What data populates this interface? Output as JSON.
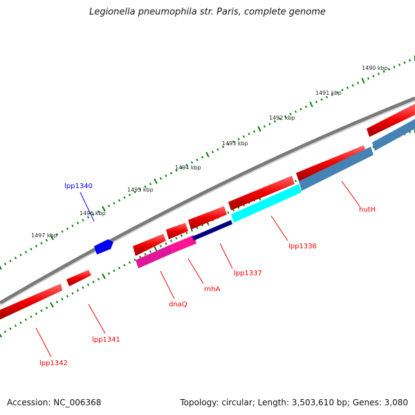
{
  "title": "Legionella pneumophila str. Paris, complete genome",
  "footer": {
    "accession": "Accession: NC_006368",
    "summary": "Topology: circular; Length: 3,503,610 bp; Genes: 3,080"
  },
  "ruler": {
    "ticks": [
      "1490 kbp",
      "1491 kbp",
      "1492 kbp",
      "1493 kbp",
      "1494 kbp",
      "1495 kbp",
      "1496 kbp",
      "1497 kbp"
    ]
  },
  "genes": [
    {
      "id": "lpp1340",
      "label": "lpp1340",
      "color": "#0000ee"
    },
    {
      "id": "lpp1336",
      "label": "lpp1336",
      "color": "#ee0000"
    },
    {
      "id": "hutH",
      "label": "hutH",
      "color": "#ee0000"
    },
    {
      "id": "lpp1337",
      "label": "lpp1337",
      "color": "#ee0000"
    },
    {
      "id": "rnhA",
      "label": "rnhA",
      "color": "#ee0000"
    },
    {
      "id": "dnaQ",
      "label": "dnaQ",
      "color": "#ee0000"
    },
    {
      "id": "lpp1341",
      "label": "lpp1341",
      "color": "#ee0000"
    },
    {
      "id": "lpp1342",
      "label": "lpp1342",
      "color": "#ee0000"
    }
  ],
  "colors": {
    "backbone": "#7a7a7a",
    "forward_gene": "#ee0000",
    "reverse_gene_red": "#ee0000",
    "cyan_gene": "#00ffff",
    "steelblue_gene": "#4682b4",
    "magenta_gene": "#ff1493",
    "navy_gene": "#000080",
    "blue_gene": "#0000ee",
    "tick_green": "#007a00"
  }
}
